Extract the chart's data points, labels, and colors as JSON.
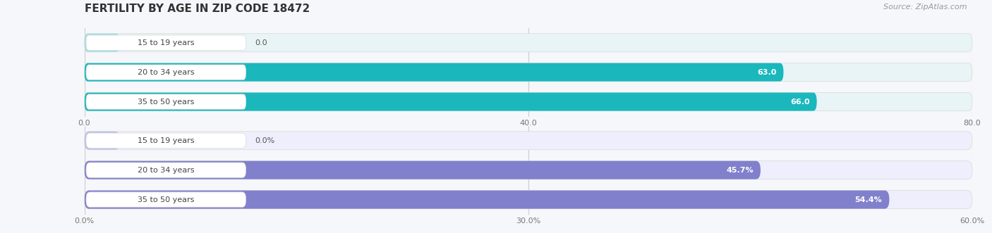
{
  "title": "FERTILITY BY AGE IN ZIP CODE 18472",
  "source": "Source: ZipAtlas.com",
  "background_color": "#f5f7fa",
  "top_chart": {
    "categories": [
      "15 to 19 years",
      "20 to 34 years",
      "35 to 50 years"
    ],
    "values": [
      0.0,
      63.0,
      66.0
    ],
    "xlim": [
      0,
      80
    ],
    "xticks": [
      0.0,
      40.0,
      80.0
    ],
    "xtick_labels": [
      "0.0",
      "40.0",
      "80.0"
    ],
    "bar_color": "#1ab8bc",
    "bar_color_light": "#a8dde0",
    "bar_bg_color": "#e8f4f5",
    "label_color_inside": "#ffffff",
    "label_color_outside": "#555555"
  },
  "bottom_chart": {
    "categories": [
      "15 to 19 years",
      "20 to 34 years",
      "35 to 50 years"
    ],
    "values": [
      0.0,
      45.7,
      54.4
    ],
    "xlim": [
      0,
      60
    ],
    "xticks": [
      0.0,
      30.0,
      60.0
    ],
    "xtick_labels": [
      "0.0%",
      "30.0%",
      "60.0%"
    ],
    "bar_color": "#8080cc",
    "bar_color_light": "#c0c0e8",
    "bar_bg_color": "#eeeefc",
    "label_color_inside": "#ffffff",
    "label_color_outside": "#555555"
  },
  "category_label_fontsize": 8,
  "category_label_color": "#444444",
  "value_label_fontsize": 8,
  "title_fontsize": 11,
  "source_fontsize": 8,
  "source_color": "#999999",
  "bar_height": 0.62,
  "pill_bg": "#ffffff",
  "pill_edge": "#dddddd",
  "grid_color": "#cccccc"
}
